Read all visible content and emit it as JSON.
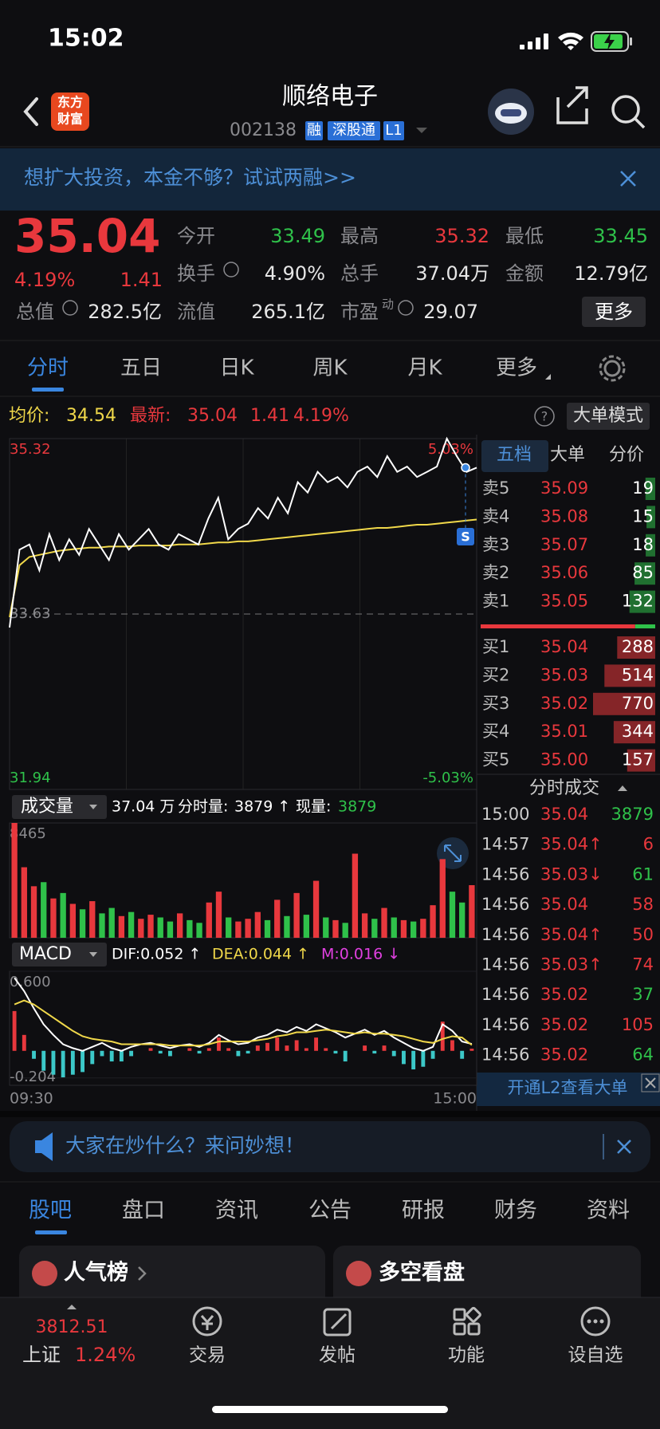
{
  "status_bar": {
    "time": "15:02"
  },
  "header": {
    "logo": [
      "东方",
      "财富"
    ],
    "title": "顺络电子",
    "code": "002138",
    "tags": [
      "融",
      "深股通",
      "L1"
    ]
  },
  "banner": {
    "text": "想扩大投资，本金不够？试试两融>>"
  },
  "quote": {
    "price": "35.04",
    "change_pct": "4.19%",
    "change": "1.41",
    "fields": [
      {
        "label": "今开",
        "value": "33.49",
        "color": "#2fc14a"
      },
      {
        "label": "最高",
        "value": "35.32",
        "color": "#e8383d"
      },
      {
        "label": "最低",
        "value": "33.45",
        "color": "#2fc14a"
      },
      {
        "label": "换手",
        "value": "4.90%",
        "color": "#e6e6e6"
      },
      {
        "label": "总手",
        "value": "37.04万",
        "color": "#e6e6e6"
      },
      {
        "label": "金额",
        "value": "12.79亿",
        "color": "#e6e6e6"
      },
      {
        "label": "总值",
        "value": "282.5亿",
        "color": "#e6e6e6"
      },
      {
        "label": "流值",
        "value": "265.1亿",
        "color": "#e6e6e6"
      },
      {
        "label": "市盈",
        "sup": "动",
        "value": "29.07",
        "color": "#e6e6e6"
      }
    ],
    "more": "更多"
  },
  "tabs": {
    "items": [
      "分时",
      "五日",
      "日K",
      "周K",
      "月K",
      "更多"
    ],
    "active": 0
  },
  "chart_info": {
    "avg_label": "均价:",
    "avg": "34.54",
    "latest_label": "最新:",
    "latest": "35.04",
    "change": "1.41",
    "pct": "4.19%",
    "help": "?",
    "mode_button": "大单模式"
  },
  "chart_data": [
    {
      "type": "line",
      "x_labels": [
        "09:30",
        "15:00"
      ],
      "ylim": [
        31.94,
        35.32
      ],
      "yticks": [
        35.32,
        33.63,
        31.94
      ],
      "y2lim": [
        -5.03,
        5.03
      ],
      "y2ticks": [
        {
          "value": 5.03,
          "label": "5.03%"
        },
        {
          "value": -5.03,
          "label": "-5.03%"
        }
      ],
      "badge": "S",
      "series": [
        {
          "color": "#ffffff",
          "values": [
            33.5,
            34.25,
            34.3,
            34.05,
            34.4,
            34.15,
            34.35,
            34.2,
            34.45,
            34.3,
            34.15,
            34.4,
            34.25,
            34.35,
            34.45,
            34.3,
            34.25,
            34.4,
            34.35,
            34.3,
            34.55,
            34.75,
            34.35,
            34.45,
            34.5,
            34.65,
            34.55,
            34.75,
            34.6,
            34.9,
            34.8,
            35.0,
            34.9,
            34.95,
            34.85,
            35.0,
            35.05,
            34.95,
            35.15,
            35.0,
            35.05,
            34.95,
            35.0,
            35.05,
            35.32,
            35.15,
            35.0,
            35.04
          ]
        },
        {
          "color": "#f0d84a",
          "values": [
            33.6,
            34.1,
            34.18,
            34.2,
            34.22,
            34.24,
            34.25,
            34.26,
            34.27,
            34.27,
            34.28,
            34.28,
            34.28,
            34.29,
            34.29,
            34.29,
            34.29,
            34.3,
            34.3,
            34.3,
            34.31,
            34.32,
            34.32,
            34.33,
            34.33,
            34.34,
            34.35,
            34.36,
            34.37,
            34.38,
            34.39,
            34.4,
            34.41,
            34.42,
            34.43,
            34.44,
            34.45,
            34.46,
            34.46,
            34.47,
            34.48,
            34.49,
            34.49,
            34.5,
            34.51,
            34.52,
            34.53,
            34.54
          ]
        }
      ]
    },
    {
      "type": "bar",
      "header": {
        "selector": "成交量",
        "total": "37.04 万",
        "interval_label": "分时量:",
        "interval_value": "3879 ↑",
        "current_label": "现量:",
        "current_value": "3879"
      },
      "ylim": [
        0,
        8465
      ],
      "yticks": [
        8465
      ],
      "color": "#e8383d",
      "down_color": "#2fc14a",
      "values": [
        8465,
        5200,
        3800,
        4100,
        2900,
        3300,
        2500,
        2100,
        2700,
        1800,
        2200,
        1600,
        1900,
        1400,
        1700,
        1500,
        1200,
        1800,
        1300,
        1100,
        2600,
        3400,
        1500,
        1200,
        1400,
        1900,
        1300,
        2800,
        1600,
        3300,
        1700,
        4200,
        1500,
        1300,
        1100,
        6200,
        1800,
        1400,
        2200,
        1500,
        1300,
        1200,
        1400,
        2400,
        5800,
        3400,
        2600,
        3879
      ]
    },
    {
      "type": "macd",
      "header": {
        "selector": "MACD",
        "dif": "DIF:0.052 ↑",
        "dea": "DEA:0.044 ↑",
        "m": "M:0.016 ↓"
      },
      "ylim": [
        -0.26,
        0.6
      ],
      "yticks": [
        {
          "value": 0.6,
          "label": "0.600"
        },
        -0.204
      ],
      "series": [
        {
          "color": "#ffffff",
          "values": [
            0.55,
            0.45,
            0.32,
            0.2,
            0.12,
            0.05,
            0.02,
            0.0,
            0.03,
            0.06,
            0.02,
            0.0,
            0.03,
            0.05,
            0.06,
            0.04,
            0.02,
            0.04,
            0.05,
            0.03,
            0.06,
            0.12,
            0.08,
            0.05,
            0.06,
            0.1,
            0.12,
            0.16,
            0.14,
            0.18,
            0.15,
            0.2,
            0.17,
            0.14,
            0.1,
            0.13,
            0.16,
            0.12,
            0.15,
            0.1,
            0.06,
            0.02,
            0.0,
            0.03,
            0.2,
            0.15,
            0.07,
            0.052
          ]
        },
        {
          "color": "#f0d84a",
          "values": [
            0.35,
            0.38,
            0.35,
            0.3,
            0.25,
            0.2,
            0.15,
            0.11,
            0.09,
            0.08,
            0.07,
            0.05,
            0.05,
            0.05,
            0.05,
            0.05,
            0.04,
            0.04,
            0.04,
            0.04,
            0.05,
            0.07,
            0.07,
            0.07,
            0.07,
            0.08,
            0.09,
            0.11,
            0.12,
            0.14,
            0.14,
            0.15,
            0.16,
            0.15,
            0.14,
            0.13,
            0.14,
            0.13,
            0.13,
            0.12,
            0.11,
            0.09,
            0.07,
            0.06,
            0.09,
            0.11,
            0.1,
            0.044
          ]
        },
        {
          "color": "#e8383d",
          "negative_color": "#3cc8c8",
          "histogram": true,
          "values": [
            0.3,
            0.12,
            -0.06,
            -0.15,
            -0.18,
            -0.2,
            -0.18,
            -0.16,
            -0.1,
            -0.04,
            -0.08,
            -0.08,
            -0.04,
            0,
            0.02,
            -0.02,
            -0.04,
            0,
            0.02,
            -0.02,
            0.02,
            0.1,
            0.02,
            -0.04,
            -0.02,
            0.04,
            0.06,
            0.1,
            0.04,
            0.08,
            0.02,
            0.1,
            0.02,
            -0.02,
            -0.08,
            0,
            0.04,
            -0.02,
            0.04,
            -0.04,
            -0.1,
            -0.14,
            -0.12,
            -0.06,
            0.22,
            0.08,
            -0.06,
            0.016
          ]
        }
      ]
    }
  ],
  "order_book": {
    "tabs": [
      "五档",
      "大单",
      "分价"
    ],
    "ask_color": "#2fc14a",
    "bid_color": "#e8383d",
    "asks": [
      {
        "label": "卖5",
        "price": "35.09",
        "volume": 19
      },
      {
        "label": "卖4",
        "price": "35.08",
        "volume": 15
      },
      {
        "label": "卖3",
        "price": "35.07",
        "volume": 18
      },
      {
        "label": "卖2",
        "price": "35.06",
        "volume": 85
      },
      {
        "label": "卖1",
        "price": "35.05",
        "volume": 132
      }
    ],
    "bids": [
      {
        "label": "买1",
        "price": "35.04",
        "volume": 288
      },
      {
        "label": "买2",
        "price": "35.03",
        "volume": 514
      },
      {
        "label": "买3",
        "price": "35.02",
        "volume": 770
      },
      {
        "label": "买4",
        "price": "35.01",
        "volume": 344
      },
      {
        "label": "买5",
        "price": "35.00",
        "volume": 157
      }
    ]
  },
  "trades": {
    "title": "分时成交",
    "rows": [
      {
        "time": "15:00",
        "price": "35.04",
        "volume": 3879,
        "color": "#2fc14a"
      },
      {
        "time": "14:57",
        "price": "35.04↑",
        "volume": 6,
        "color": "#e8383d"
      },
      {
        "time": "14:56",
        "price": "35.03↓",
        "volume": 61,
        "color": "#2fc14a"
      },
      {
        "time": "14:56",
        "price": "35.04",
        "volume": 58,
        "color": "#e8383d"
      },
      {
        "time": "14:56",
        "price": "35.04↑",
        "volume": 50,
        "color": "#e8383d"
      },
      {
        "time": "14:56",
        "price": "35.03↑",
        "volume": 74,
        "color": "#e8383d"
      },
      {
        "time": "14:56",
        "price": "35.02",
        "volume": 37,
        "color": "#2fc14a"
      },
      {
        "time": "14:56",
        "price": "35.02",
        "volume": 105,
        "color": "#e8383d"
      },
      {
        "time": "14:56",
        "price": "35.02",
        "volume": 64,
        "color": "#2fc14a"
      }
    ]
  },
  "l2_link": "开通L2查看大单",
  "ad": {
    "text": "大家在炒什么？来问妙想！"
  },
  "section_tabs": {
    "items": [
      "股吧",
      "盘口",
      "资讯",
      "公告",
      "研报",
      "财务",
      "资料"
    ],
    "active": 0
  },
  "cards": [
    "人气榜",
    "多空看盘"
  ],
  "bottom_nav": {
    "index": {
      "value": "3812.51",
      "name": "上证",
      "pct": "1.24%"
    },
    "items": [
      "交易",
      "发帖",
      "功能",
      "设自选"
    ]
  }
}
